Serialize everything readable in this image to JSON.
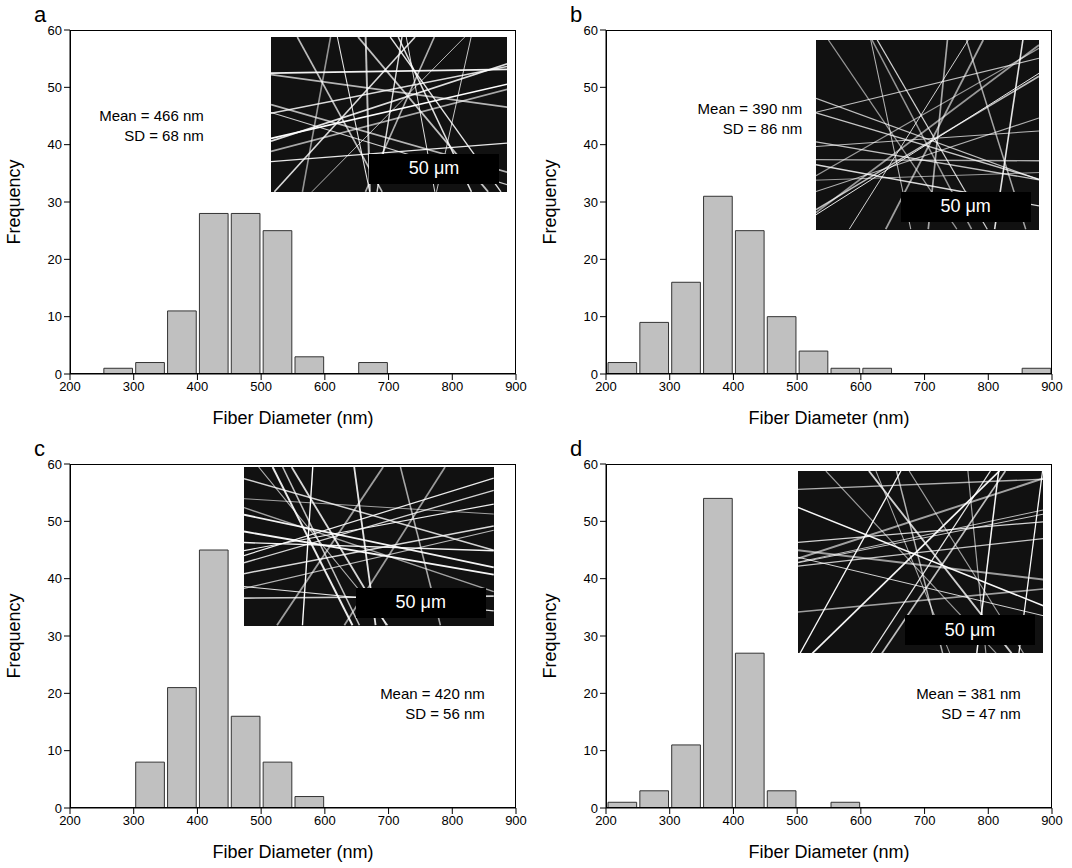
{
  "chart_data": [
    {
      "type": "histogram",
      "title": "a",
      "x_label": "Fiber Diameter (nm)",
      "y_label": "Frequency",
      "bins": [
        250,
        300,
        350,
        400,
        450,
        500,
        550,
        600,
        650,
        700
      ],
      "counts": [
        1,
        2,
        11,
        28,
        28,
        25,
        3,
        0,
        2
      ],
      "color": "#c0c0c0",
      "xlim": [
        200,
        900
      ],
      "xticks": [
        200,
        300,
        400,
        500,
        600,
        700,
        800,
        900
      ],
      "ylim": [
        0,
        60
      ],
      "yticks": [
        0,
        10,
        20,
        30,
        40,
        50,
        60
      ],
      "grid": false,
      "annotations": [
        "Mean = 466 nm",
        "SD = 68 nm"
      ],
      "inset": {
        "scale_bar": "50 μm"
      }
    },
    {
      "type": "histogram",
      "title": "b",
      "x_label": "Fiber Diameter (nm)",
      "y_label": "Frequency",
      "bins": [
        200,
        250,
        300,
        350,
        400,
        450,
        500,
        550,
        600,
        650,
        700,
        750,
        800,
        850,
        900
      ],
      "counts": [
        2,
        9,
        16,
        31,
        25,
        10,
        4,
        1,
        1,
        0,
        0,
        0,
        0,
        1
      ],
      "color": "#c0c0c0",
      "xlim": [
        200,
        900
      ],
      "xticks": [
        200,
        300,
        400,
        500,
        600,
        700,
        800,
        900
      ],
      "ylim": [
        0,
        60
      ],
      "yticks": [
        0,
        10,
        20,
        30,
        40,
        50,
        60
      ],
      "grid": false,
      "annotations": [
        "Mean = 390 nm",
        "SD = 86 nm"
      ],
      "inset": {
        "scale_bar": "50 μm"
      }
    },
    {
      "type": "histogram",
      "title": "c",
      "x_label": "Fiber Diameter (nm)",
      "y_label": "Frequency",
      "bins": [
        300,
        350,
        400,
        450,
        500,
        550,
        600
      ],
      "counts": [
        8,
        21,
        45,
        16,
        8,
        2
      ],
      "color": "#c0c0c0",
      "xlim": [
        200,
        900
      ],
      "xticks": [
        200,
        300,
        400,
        500,
        600,
        700,
        800,
        900
      ],
      "ylim": [
        0,
        60
      ],
      "yticks": [
        0,
        10,
        20,
        30,
        40,
        50,
        60
      ],
      "grid": false,
      "annotations": [
        "Mean = 420 nm",
        "SD = 56 nm"
      ],
      "inset": {
        "scale_bar": "50 μm"
      }
    },
    {
      "type": "histogram",
      "title": "d",
      "x_label": "Fiber Diameter (nm)",
      "y_label": "Frequency",
      "bins": [
        200,
        250,
        300,
        350,
        400,
        450,
        500,
        550,
        600
      ],
      "counts": [
        1,
        3,
        11,
        54,
        27,
        3,
        0,
        1
      ],
      "color": "#c0c0c0",
      "xlim": [
        200,
        900
      ],
      "xticks": [
        200,
        300,
        400,
        500,
        600,
        700,
        800,
        900
      ],
      "ylim": [
        0,
        60
      ],
      "yticks": [
        0,
        10,
        20,
        30,
        40,
        50,
        60
      ],
      "grid": false,
      "annotations": [
        "Mean = 381 nm",
        "SD = 47 nm"
      ],
      "inset": {
        "scale_bar": "50 μm"
      }
    }
  ]
}
